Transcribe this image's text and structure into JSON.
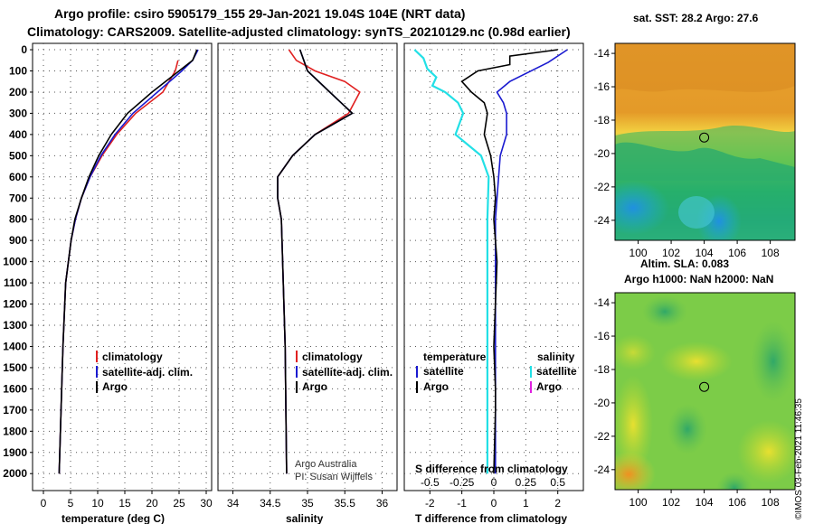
{
  "title_line1": "Argo profile: csiro 5905179_155 29-Jan-2021 19.04S 104E (NRT data)",
  "title_line2": "Climatology: CARS2009. Satellite-adjusted climatology: synTS_20210129.nc (0.98d earlier)",
  "stamp": "©IMOS 03-Feb-2021 11:46:35",
  "credit_line1": "Argo Australia",
  "credit_line2": "PI: Susan Wijffels",
  "colors": {
    "climatology": "#e02020",
    "satellite": "#1a1ad0",
    "argo": "#000000",
    "salinity_sat": "#22e0e6",
    "salinity_argo": "#e020e0"
  },
  "depth_ticks": [
    0,
    100,
    200,
    300,
    400,
    500,
    600,
    700,
    800,
    900,
    1000,
    1100,
    1200,
    1300,
    1400,
    1500,
    1600,
    1700,
    1800,
    1900,
    2000
  ],
  "chart_data": [
    {
      "type": "line",
      "xlabel": "temperature (deg C)",
      "ylabel": "",
      "xlim": [
        -2,
        31
      ],
      "ylim": [
        2080,
        -30
      ],
      "xticks": [
        0,
        5,
        10,
        15,
        20,
        25,
        30
      ],
      "legend": [
        "climatology",
        "satellite-adj. clim.",
        "Argo"
      ],
      "series": [
        {
          "name": "climatology",
          "color": "climatology",
          "x": [
            24.8,
            24.3,
            22,
            17,
            13.5,
            10.8,
            8.6,
            7,
            5.9,
            5.1,
            4.1,
            3.6,
            2.9
          ],
          "y": [
            50,
            100,
            200,
            300,
            400,
            500,
            600,
            700,
            800,
            900,
            1100,
            1400,
            2000
          ]
        },
        {
          "name": "satellite-adj. clim.",
          "color": "satellite",
          "x": [
            28.5,
            27.5,
            25.5,
            21,
            16.5,
            13.2,
            10.6,
            8.6,
            7,
            5.9,
            5.1,
            4.1,
            3.6,
            2.9
          ],
          "y": [
            0,
            50,
            100,
            200,
            300,
            400,
            500,
            600,
            700,
            800,
            900,
            1100,
            1400,
            2000
          ]
        },
        {
          "name": "Argo",
          "color": "argo",
          "x": [
            28.3,
            27.5,
            25,
            20,
            15.5,
            12.5,
            10.2,
            8.4,
            7,
            5.8,
            5.1,
            4.1,
            3.6,
            2.9
          ],
          "y": [
            0,
            50,
            100,
            200,
            300,
            400,
            500,
            600,
            700,
            800,
            900,
            1100,
            1400,
            2000
          ]
        }
      ]
    },
    {
      "type": "line",
      "xlabel": "salinity",
      "ylabel": "",
      "xlim": [
        33.8,
        36.2
      ],
      "ylim": [
        2080,
        -30
      ],
      "xticks": [
        34,
        34.5,
        35,
        35.5,
        36
      ],
      "xticklabels": [
        "34",
        "34.5",
        "35",
        "35.5",
        "36"
      ],
      "legend": [
        "climatology",
        "satellite-adj. clim.",
        "Argo"
      ],
      "series": [
        {
          "name": "climatology",
          "color": "climatology",
          "x": [
            34.75,
            34.85,
            35.1,
            35.5,
            35.7,
            35.55,
            35.1,
            34.8,
            34.6,
            34.6,
            34.65,
            34.7,
            34.72
          ],
          "y": [
            0,
            50,
            100,
            150,
            200,
            300,
            400,
            500,
            600,
            700,
            800,
            1400,
            2000
          ]
        },
        {
          "name": "satellite-adj. clim.",
          "color": "satellite",
          "x": [
            34.9,
            34.95,
            35.0,
            35.3,
            35.6,
            35.1,
            34.8,
            34.6,
            34.6,
            34.65,
            34.7,
            34.72
          ],
          "y": [
            0,
            50,
            100,
            200,
            300,
            400,
            500,
            600,
            700,
            800,
            1400,
            2000
          ]
        },
        {
          "name": "Argo",
          "color": "argo",
          "x": [
            34.9,
            34.95,
            35.0,
            35.3,
            35.6,
            35.1,
            34.8,
            34.6,
            34.6,
            34.65,
            34.7,
            34.72
          ],
          "y": [
            0,
            50,
            100,
            200,
            300,
            400,
            500,
            600,
            700,
            800,
            1400,
            2000
          ]
        }
      ]
    },
    {
      "type": "line",
      "xlabel": "T difference from climatology",
      "ylabel": "",
      "xlim": [
        -2.8,
        2.8
      ],
      "ylim": [
        2080,
        -30
      ],
      "xticks": [
        -2,
        -1,
        0,
        1,
        2
      ],
      "top_axis": {
        "label": "S difference from climatology",
        "ticks": [
          -0.5,
          -0.25,
          0,
          0.25,
          0.5
        ],
        "ticklabels": [
          "-0.5",
          "-0.25",
          "0",
          "0.25",
          "0.5"
        ]
      },
      "legend_left_title": "temperature",
      "legend_right_title": "salinity",
      "legend_left": [
        "satellite",
        "Argo"
      ],
      "legend_right": [
        "satellite",
        "Argo"
      ],
      "series": [
        {
          "name": "T satellite",
          "color": "satellite",
          "x": [
            2.3,
            1.7,
            0.5,
            0.1,
            0.3,
            0.4,
            0.4,
            0.2,
            0.15,
            0.1,
            0.05,
            0.05,
            0.05,
            0.05
          ],
          "y": [
            0,
            60,
            150,
            200,
            250,
            300,
            400,
            500,
            600,
            700,
            800,
            1000,
            1500,
            2000
          ]
        },
        {
          "name": "T Argo",
          "color": "argo",
          "x": [
            2.0,
            0.5,
            0.5,
            -0.5,
            -1.0,
            -0.7,
            -0.3,
            -0.2,
            -0.3,
            -0.1,
            0.0,
            0.05,
            0.0,
            0.1,
            0.0,
            0.05,
            0.05,
            0.0
          ],
          "y": [
            0,
            30,
            70,
            100,
            150,
            200,
            250,
            300,
            400,
            500,
            600,
            700,
            800,
            1000,
            1400,
            1600,
            1700,
            2000
          ]
        },
        {
          "name": "S satellite",
          "color": "salinity_sat",
          "x": [
            -0.62,
            -0.55,
            -0.52,
            -0.45,
            -0.48,
            -0.38,
            -0.28,
            -0.24,
            -0.3,
            -0.1,
            -0.04,
            -0.05,
            -0.05,
            -0.05
          ],
          "y": [
            0,
            40,
            90,
            130,
            170,
            200,
            250,
            300,
            400,
            500,
            600,
            800,
            1400,
            2000
          ]
        }
      ]
    }
  ],
  "maps": [
    {
      "title": "sat. SST: 28.2  Argo: 27.6",
      "xticks": [
        100,
        102,
        104,
        106,
        108
      ],
      "yticks": [
        -14,
        -16,
        -18,
        -20,
        -22,
        -24
      ],
      "lon_range": [
        98.6,
        109.5
      ],
      "lat_range": [
        -25.2,
        -13.4
      ],
      "marker": {
        "lon": 104,
        "lat": -19.04
      }
    },
    {
      "title_line1": "Altim. SLA: 0.083",
      "title_line2": "Argo h1000: NaN h2000: NaN",
      "xticks": [
        100,
        102,
        104,
        106,
        108
      ],
      "yticks": [
        -14,
        -16,
        -18,
        -20,
        -22,
        -24
      ],
      "lon_range": [
        98.6,
        109.5
      ],
      "lat_range": [
        -25.2,
        -13.4
      ],
      "marker": {
        "lon": 104,
        "lat": -19.04
      }
    }
  ]
}
